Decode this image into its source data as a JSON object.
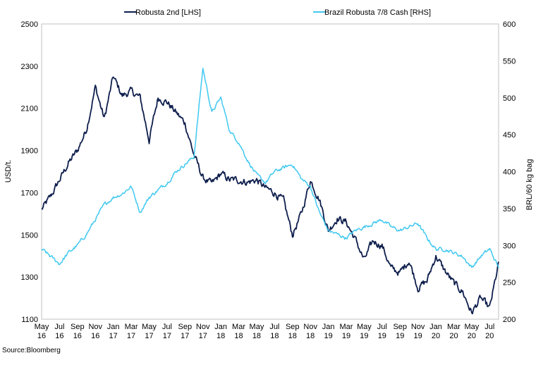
{
  "chart_data": {
    "type": "line",
    "source": "Source:Bloomberg",
    "y_left_label": "USD/t.",
    "y_right_label": "BRL/60 kg bag",
    "y_left_lim": [
      1100,
      2500
    ],
    "y_right_lim": [
      200,
      600
    ],
    "y_left_ticks": [
      "1100",
      "1300",
      "1500",
      "1700",
      "1900",
      "2100",
      "2300",
      "2500"
    ],
    "y_right_ticks": [
      "200",
      "250",
      "300",
      "350",
      "400",
      "450",
      "500",
      "550",
      "600"
    ],
    "x_ticks": [
      {
        "month": "May",
        "year": "16"
      },
      {
        "month": "Jul",
        "year": "16"
      },
      {
        "month": "Sep",
        "year": "16"
      },
      {
        "month": "Nov",
        "year": "16"
      },
      {
        "month": "Jan",
        "year": "17"
      },
      {
        "month": "Mar",
        "year": "17"
      },
      {
        "month": "May",
        "year": "17"
      },
      {
        "month": "Jul",
        "year": "17"
      },
      {
        "month": "Sep",
        "year": "17"
      },
      {
        "month": "Nov",
        "year": "17"
      },
      {
        "month": "Jan",
        "year": "18"
      },
      {
        "month": "Mar",
        "year": "18"
      },
      {
        "month": "May",
        "year": "18"
      },
      {
        "month": "Jul",
        "year": "18"
      },
      {
        "month": "Sep",
        "year": "18"
      },
      {
        "month": "Nov",
        "year": "18"
      },
      {
        "month": "Jan",
        "year": "19"
      },
      {
        "month": "Mar",
        "year": "19"
      },
      {
        "month": "May",
        "year": "19"
      },
      {
        "month": "Jul",
        "year": "19"
      },
      {
        "month": "Sep",
        "year": "19"
      },
      {
        "month": "Nov",
        "year": "19"
      },
      {
        "month": "Jan",
        "year": "20"
      },
      {
        "month": "Mar",
        "year": "20"
      },
      {
        "month": "May",
        "year": "20"
      },
      {
        "month": "Jul",
        "year": "20"
      }
    ],
    "x_range": [
      "2016-05",
      "2020-08"
    ],
    "grid": false,
    "legend_position": "top",
    "series": [
      {
        "name": "Robusta 2nd [LHS]",
        "axis": "left",
        "color": "#0e1e4c",
        "x": [
          "2016-05",
          "2016-06",
          "2016-07",
          "2016-08",
          "2016-09",
          "2016-10",
          "2016-11",
          "2016-12",
          "2017-01",
          "2017-02",
          "2017-03",
          "2017-04",
          "2017-05",
          "2017-06",
          "2017-07",
          "2017-08",
          "2017-09",
          "2017-10",
          "2017-11",
          "2017-12",
          "2018-01",
          "2018-02",
          "2018-03",
          "2018-04",
          "2018-05",
          "2018-06",
          "2018-07",
          "2018-08",
          "2018-09",
          "2018-10",
          "2018-11",
          "2018-12",
          "2019-01",
          "2019-02",
          "2019-03",
          "2019-04",
          "2019-05",
          "2019-06",
          "2019-07",
          "2019-08",
          "2019-09",
          "2019-10",
          "2019-11",
          "2019-12",
          "2020-01",
          "2020-02",
          "2020-03",
          "2020-04",
          "2020-05",
          "2020-06",
          "2020-07",
          "2020-08"
        ],
        "values": [
          1620,
          1680,
          1760,
          1840,
          1900,
          2000,
          2200,
          2050,
          2250,
          2160,
          2180,
          2150,
          1950,
          2150,
          2130,
          2080,
          2030,
          1880,
          1770,
          1740,
          1790,
          1760,
          1760,
          1750,
          1760,
          1720,
          1700,
          1660,
          1500,
          1600,
          1760,
          1670,
          1520,
          1580,
          1560,
          1480,
          1380,
          1470,
          1450,
          1340,
          1320,
          1380,
          1250,
          1280,
          1400,
          1330,
          1270,
          1230,
          1130,
          1200,
          1150,
          1360
        ]
      },
      {
        "name": "Brazil Robusta 7/8 Cash [RHS]",
        "axis": "right",
        "color": "#40c8f0",
        "x": [
          "2016-05",
          "2016-06",
          "2016-07",
          "2016-08",
          "2016-09",
          "2016-10",
          "2016-11",
          "2016-12",
          "2017-01",
          "2017-02",
          "2017-03",
          "2017-04",
          "2017-05",
          "2017-06",
          "2017-07",
          "2017-08",
          "2017-09",
          "2017-10",
          "2017-11",
          "2017-12",
          "2018-01",
          "2018-02",
          "2018-03",
          "2018-04",
          "2018-05",
          "2018-06",
          "2018-07",
          "2018-08",
          "2018-09",
          "2018-10",
          "2018-11",
          "2018-12",
          "2019-01",
          "2019-02",
          "2019-03",
          "2019-04",
          "2019-05",
          "2019-06",
          "2019-07",
          "2019-08",
          "2019-09",
          "2019-10",
          "2019-11",
          "2019-12",
          "2020-01",
          "2020-02",
          "2020-03",
          "2020-04",
          "2020-05",
          "2020-06",
          "2020-07",
          "2020-08"
        ],
        "values": [
          295,
          285,
          275,
          290,
          300,
          315,
          335,
          355,
          365,
          370,
          380,
          345,
          365,
          375,
          385,
          400,
          410,
          420,
          540,
          480,
          500,
          455,
          440,
          415,
          395,
          385,
          400,
          405,
          410,
          390,
          380,
          345,
          320,
          315,
          310,
          320,
          325,
          330,
          335,
          325,
          320,
          325,
          330,
          310,
          295,
          295,
          290,
          285,
          270,
          285,
          295,
          270
        ]
      }
    ]
  }
}
